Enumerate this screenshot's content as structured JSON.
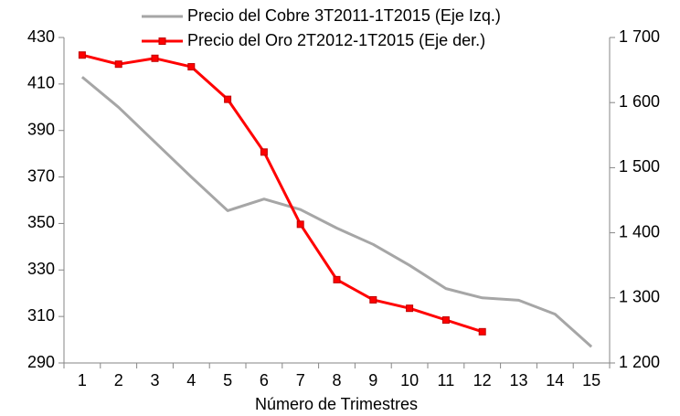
{
  "chart_data": {
    "type": "line",
    "xlabel": "Número de Trimestres",
    "categories": [
      1,
      2,
      3,
      4,
      5,
      6,
      7,
      8,
      9,
      10,
      11,
      12,
      13,
      14,
      15
    ],
    "series": [
      {
        "name": "Precio del Cobre 3T2011-1T2015 (Eje Izq.)",
        "color": "#a6a6a6",
        "axis": "y",
        "values": [
          413,
          400,
          385,
          370,
          355.5,
          360.5,
          356,
          348,
          341,
          332,
          322,
          318,
          317,
          311,
          297
        ]
      },
      {
        "name": "Precio del Oro 2T2012-1T2015 (Eje der.)",
        "color": "#ff0000",
        "axis": "y2",
        "marker": "square",
        "values": [
          1673,
          1659,
          1668,
          1655,
          1605,
          1524,
          1413,
          1328,
          1297,
          1284,
          1266,
          1248,
          null,
          null,
          null
        ]
      }
    ],
    "ylim": [
      290,
      430
    ],
    "yticks": [
      290,
      310,
      330,
      350,
      370,
      390,
      410,
      430
    ],
    "y2lim": [
      1200,
      1700
    ],
    "y2ticks": [
      {
        "value": 1200,
        "label": "1 200"
      },
      {
        "value": 1300,
        "label": "1 300"
      },
      {
        "value": 1400,
        "label": "1 400"
      },
      {
        "value": 1500,
        "label": "1 500"
      },
      {
        "value": 1600,
        "label": "1 600"
      },
      {
        "value": 1700,
        "label": "1 700"
      }
    ],
    "grid": false
  }
}
